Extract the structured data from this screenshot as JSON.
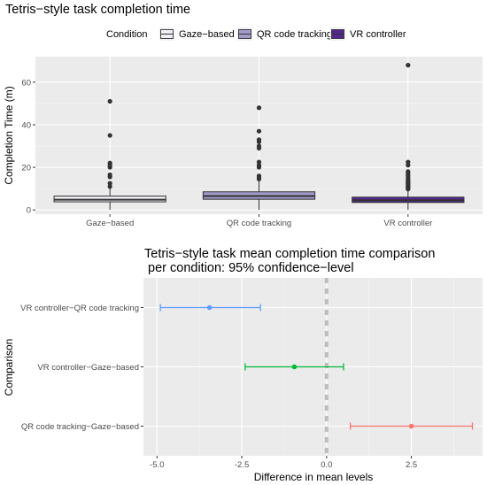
{
  "chart_data": [
    {
      "type": "box",
      "title": "Tetris−style task completion time",
      "xlabel": "",
      "ylabel": "Completion Time (m)",
      "ylim": [
        -2,
        72
      ],
      "yticks": [
        0,
        20,
        40,
        60
      ],
      "grid": true,
      "legend": {
        "title": "Condition",
        "position": "top",
        "items": [
          {
            "label": "Gaze−based",
            "color": "#efedf5"
          },
          {
            "label": "QR code tracking",
            "color": "#a09bc9"
          },
          {
            "label": "VR controller",
            "color": "#54278f"
          }
        ]
      },
      "categories": [
        "Gaze−based",
        "QR code tracking",
        "VR controller"
      ],
      "series": [
        {
          "name": "Gaze−based",
          "color": "#efedf5",
          "box": {
            "q1": 3.8,
            "median": 4.8,
            "q3": 6.5
          },
          "outliers": [
            51,
            35,
            22,
            21,
            20,
            16.5,
            15.5,
            12.5,
            11
          ]
        },
        {
          "name": "QR code tracking",
          "color": "#a09bc9",
          "box": {
            "q1": 5.0,
            "median": 6.5,
            "q3": 8.5
          },
          "outliers": [
            48,
            37,
            33,
            32,
            30,
            29,
            22.5,
            21,
            20,
            16,
            15,
            14.5
          ]
        },
        {
          "name": "VR controller",
          "color": "#54278f",
          "box": {
            "q1": 3.5,
            "median": 4.5,
            "q3": 6.0
          },
          "outliers": [
            68,
            22.5,
            21,
            18,
            17,
            16,
            15,
            14,
            13.5,
            13,
            12.5,
            12,
            11.5,
            11,
            10.5,
            10,
            9.8
          ]
        }
      ]
    },
    {
      "type": "errorbar",
      "title_line1": "Tetris−style task mean completion time comparison",
      "title_line2": " per condition: 95% confidence−level",
      "xlabel": "Difference in mean levels",
      "ylabel": "Comparison",
      "xlim": [
        -5.4,
        4.6
      ],
      "xticks": [
        "-5.0",
        "-2.5",
        "0.0",
        "2.5"
      ],
      "xtick_values": [
        -5.0,
        -2.5,
        0.0,
        2.5
      ],
      "reference_line": 0,
      "grid": true,
      "comparisons": [
        {
          "label": "VR controller−QR code tracking",
          "estimate": -3.45,
          "lower": -4.9,
          "upper": -1.95,
          "color": "#619cff"
        },
        {
          "label": "VR controller−Gaze−based",
          "estimate": -0.95,
          "lower": -2.4,
          "upper": 0.5,
          "color": "#00ba38"
        },
        {
          "label": "QR code tracking−Gaze−based",
          "estimate": 2.5,
          "lower": 0.7,
          "upper": 4.3,
          "color": "#f8766d"
        }
      ]
    }
  ]
}
